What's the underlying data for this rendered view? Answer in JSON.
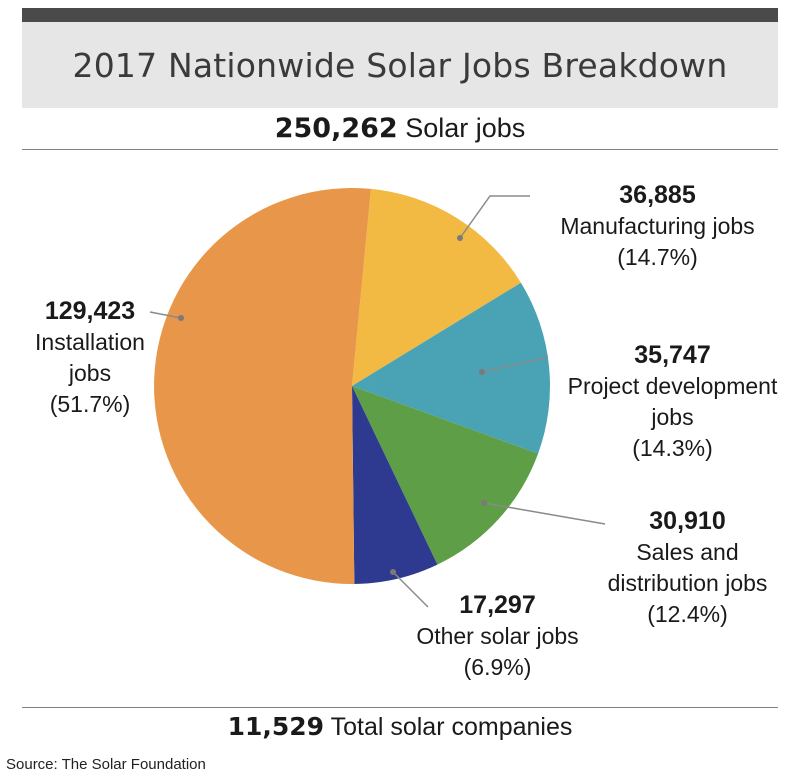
{
  "title": "2017 Nationwide Solar Jobs Breakdown",
  "total_jobs": {
    "value": "250,262",
    "label": "Solar jobs"
  },
  "total_companies": {
    "value": "11,529",
    "label": "Total solar companies"
  },
  "source": "Source: The Solar Foundation",
  "chart_data": {
    "type": "pie",
    "title": "2017 Nationwide Solar Jobs Breakdown",
    "slices": [
      {
        "name": "Manufacturing jobs",
        "value": 36885,
        "value_label": "36,885",
        "percent_label": "(14.7%)",
        "label_lines": [
          "Manufacturing jobs"
        ],
        "color": "#f2ba42"
      },
      {
        "name": "Project development jobs",
        "value": 35747,
        "value_label": "35,747",
        "percent_label": "(14.3%)",
        "label_lines": [
          "Project development",
          "jobs"
        ],
        "color": "#4aa3b5"
      },
      {
        "name": "Sales and distribution jobs",
        "value": 30910,
        "value_label": "30,910",
        "percent_label": "(12.4%)",
        "label_lines": [
          "Sales and",
          "distribution jobs"
        ],
        "color": "#5e9e46"
      },
      {
        "name": "Other solar jobs",
        "value": 17297,
        "value_label": "17,297",
        "percent_label": "(6.9%)",
        "label_lines": [
          "Other solar jobs"
        ],
        "color": "#2e3a8f"
      },
      {
        "name": "Installation jobs",
        "value": 129423,
        "value_label": "129,423",
        "percent_label": "(51.7%)",
        "label_lines": [
          "Installation",
          "jobs"
        ],
        "color": "#e8974a"
      }
    ]
  }
}
